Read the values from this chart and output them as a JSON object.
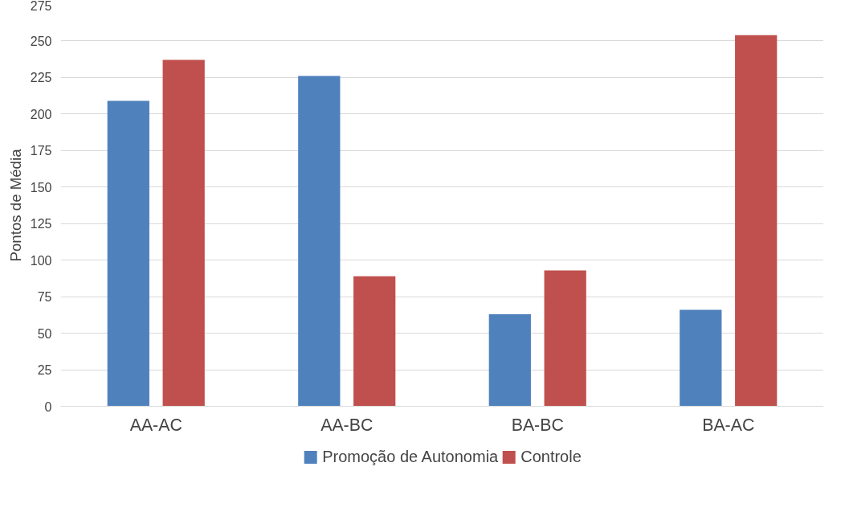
{
  "chart_data": {
    "type": "bar",
    "ylabel": "Pontos de Média",
    "categories": [
      "AA-AC",
      "AA-BC",
      "BA-BC",
      "BA-AC"
    ],
    "series": [
      {
        "name": "Promoção de Autonomia",
        "color": "#4f81bd",
        "values": [
          209,
          226,
          63,
          66
        ]
      },
      {
        "name": "Controle",
        "color": "#c0504d",
        "values": [
          237,
          89,
          93,
          254
        ]
      }
    ],
    "ylim": [
      0,
      275
    ],
    "yticks": [
      0,
      25,
      50,
      75,
      100,
      125,
      150,
      175,
      200,
      225,
      250,
      275
    ],
    "grid": "y",
    "legend": "bottom"
  }
}
